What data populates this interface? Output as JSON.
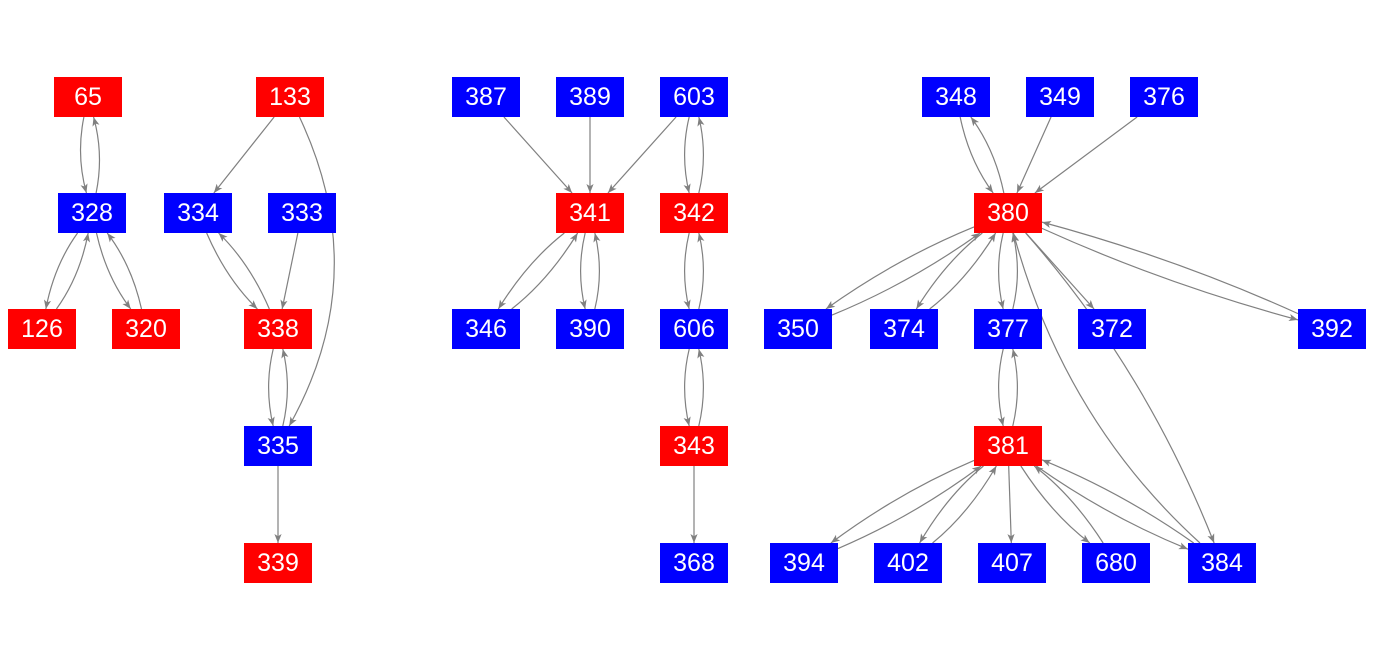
{
  "colors": {
    "red": "#ff0000",
    "blue": "#0000ff",
    "edge": "#808080",
    "label": "#ffffff"
  },
  "nodes": [
    {
      "id": "65",
      "color": "red"
    },
    {
      "id": "133",
      "color": "red"
    },
    {
      "id": "387",
      "color": "blue"
    },
    {
      "id": "389",
      "color": "blue"
    },
    {
      "id": "603",
      "color": "blue"
    },
    {
      "id": "348",
      "color": "blue"
    },
    {
      "id": "349",
      "color": "blue"
    },
    {
      "id": "376",
      "color": "blue"
    },
    {
      "id": "328",
      "color": "blue"
    },
    {
      "id": "334",
      "color": "blue"
    },
    {
      "id": "333",
      "color": "blue"
    },
    {
      "id": "341",
      "color": "red"
    },
    {
      "id": "342",
      "color": "red"
    },
    {
      "id": "380",
      "color": "red"
    },
    {
      "id": "126",
      "color": "red"
    },
    {
      "id": "320",
      "color": "red"
    },
    {
      "id": "338",
      "color": "red"
    },
    {
      "id": "346",
      "color": "blue"
    },
    {
      "id": "390",
      "color": "blue"
    },
    {
      "id": "606",
      "color": "blue"
    },
    {
      "id": "350",
      "color": "blue"
    },
    {
      "id": "374",
      "color": "blue"
    },
    {
      "id": "377",
      "color": "blue"
    },
    {
      "id": "372",
      "color": "blue"
    },
    {
      "id": "392",
      "color": "blue"
    },
    {
      "id": "335",
      "color": "blue"
    },
    {
      "id": "343",
      "color": "red"
    },
    {
      "id": "381",
      "color": "red"
    },
    {
      "id": "339",
      "color": "red"
    },
    {
      "id": "368",
      "color": "blue"
    },
    {
      "id": "394",
      "color": "blue"
    },
    {
      "id": "402",
      "color": "blue"
    },
    {
      "id": "407",
      "color": "blue"
    },
    {
      "id": "680",
      "color": "blue"
    },
    {
      "id": "384",
      "color": "blue"
    }
  ],
  "edges": [
    [
      "65",
      "328"
    ],
    [
      "328",
      "65"
    ],
    [
      "328",
      "126"
    ],
    [
      "126",
      "328"
    ],
    [
      "328",
      "320"
    ],
    [
      "320",
      "328"
    ],
    [
      "133",
      "334"
    ],
    [
      "133",
      "335"
    ],
    [
      "334",
      "338"
    ],
    [
      "338",
      "334"
    ],
    [
      "333",
      "338"
    ],
    [
      "338",
      "335"
    ],
    [
      "335",
      "338"
    ],
    [
      "335",
      "339"
    ],
    [
      "387",
      "341"
    ],
    [
      "389",
      "341"
    ],
    [
      "603",
      "341"
    ],
    [
      "603",
      "342"
    ],
    [
      "342",
      "603"
    ],
    [
      "341",
      "346"
    ],
    [
      "346",
      "341"
    ],
    [
      "341",
      "390"
    ],
    [
      "390",
      "341"
    ],
    [
      "342",
      "606"
    ],
    [
      "606",
      "342"
    ],
    [
      "606",
      "343"
    ],
    [
      "343",
      "606"
    ],
    [
      "343",
      "368"
    ],
    [
      "348",
      "380"
    ],
    [
      "380",
      "348"
    ],
    [
      "349",
      "380"
    ],
    [
      "376",
      "380"
    ],
    [
      "380",
      "350"
    ],
    [
      "350",
      "380"
    ],
    [
      "380",
      "374"
    ],
    [
      "374",
      "380"
    ],
    [
      "380",
      "377"
    ],
    [
      "377",
      "380"
    ],
    [
      "380",
      "372"
    ],
    [
      "380",
      "392"
    ],
    [
      "392",
      "380"
    ],
    [
      "380",
      "384"
    ],
    [
      "384",
      "380"
    ],
    [
      "377",
      "381"
    ],
    [
      "381",
      "377"
    ],
    [
      "381",
      "394"
    ],
    [
      "394",
      "381"
    ],
    [
      "381",
      "402"
    ],
    [
      "402",
      "381"
    ],
    [
      "381",
      "407"
    ],
    [
      "381",
      "680"
    ],
    [
      "680",
      "381"
    ],
    [
      "381",
      "384"
    ],
    [
      "384",
      "381"
    ]
  ]
}
